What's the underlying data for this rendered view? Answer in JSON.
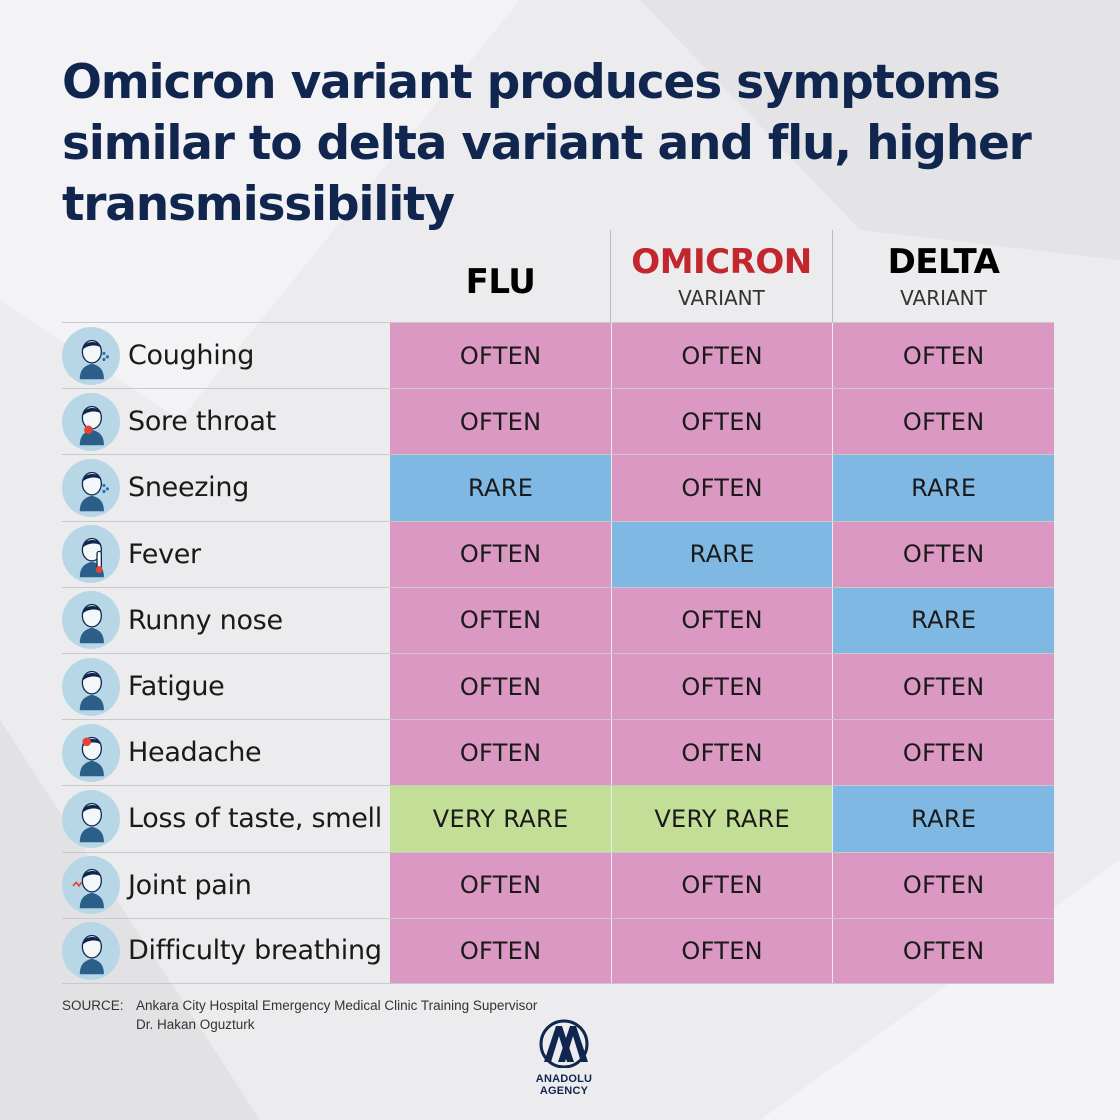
{
  "title": "Omicron variant produces symptoms similar to delta variant and flu, higher transmissibility",
  "columns": [
    {
      "name": "FLU",
      "sub": "",
      "color": "#1a1a1a"
    },
    {
      "name": "OMICRON",
      "sub": "VARIANT",
      "color": "#c1272d"
    },
    {
      "name": "DELTA",
      "sub": "VARIANT",
      "color": "#1a1a1a"
    }
  ],
  "colors": {
    "often": "#da98c2",
    "rare": "#80b8e4",
    "very_rare": "#c3df97",
    "title": "#10264f"
  },
  "rows": [
    {
      "symptom": "Coughing",
      "icon": "coughing-person-icon",
      "values": [
        "OFTEN",
        "OFTEN",
        "OFTEN"
      ]
    },
    {
      "symptom": "Sore throat",
      "icon": "sore-throat-icon",
      "values": [
        "OFTEN",
        "OFTEN",
        "OFTEN"
      ]
    },
    {
      "symptom": "Sneezing",
      "icon": "sneezing-person-icon",
      "values": [
        "RARE",
        "OFTEN",
        "RARE"
      ]
    },
    {
      "symptom": "Fever",
      "icon": "fever-thermometer-icon",
      "values": [
        "OFTEN",
        "RARE",
        "OFTEN"
      ]
    },
    {
      "symptom": "Runny nose",
      "icon": "runny-nose-icon",
      "values": [
        "OFTEN",
        "OFTEN",
        "RARE"
      ]
    },
    {
      "symptom": "Fatigue",
      "icon": "fatigue-person-icon",
      "values": [
        "OFTEN",
        "OFTEN",
        "OFTEN"
      ]
    },
    {
      "symptom": "Headache",
      "icon": "headache-icon",
      "values": [
        "OFTEN",
        "OFTEN",
        "OFTEN"
      ]
    },
    {
      "symptom": "Loss of taste, smell",
      "icon": "loss-of-taste-smell-icon",
      "values": [
        "VERY RARE",
        "VERY RARE",
        "RARE"
      ]
    },
    {
      "symptom": "Joint pain",
      "icon": "joint-pain-icon",
      "values": [
        "OFTEN",
        "OFTEN",
        "OFTEN"
      ]
    },
    {
      "symptom": "Difficulty breathing",
      "icon": "difficulty-breathing-icon",
      "values": [
        "OFTEN",
        "OFTEN",
        "OFTEN"
      ]
    }
  ],
  "source": {
    "label": "SOURCE:",
    "line1": "Ankara City Hospital Emergency Medical Clinic Training Supervisor",
    "line2": "Dr. Hakan Oguzturk"
  },
  "logo": {
    "text": "ANADOLU AGENCY",
    "mark": "AA"
  }
}
